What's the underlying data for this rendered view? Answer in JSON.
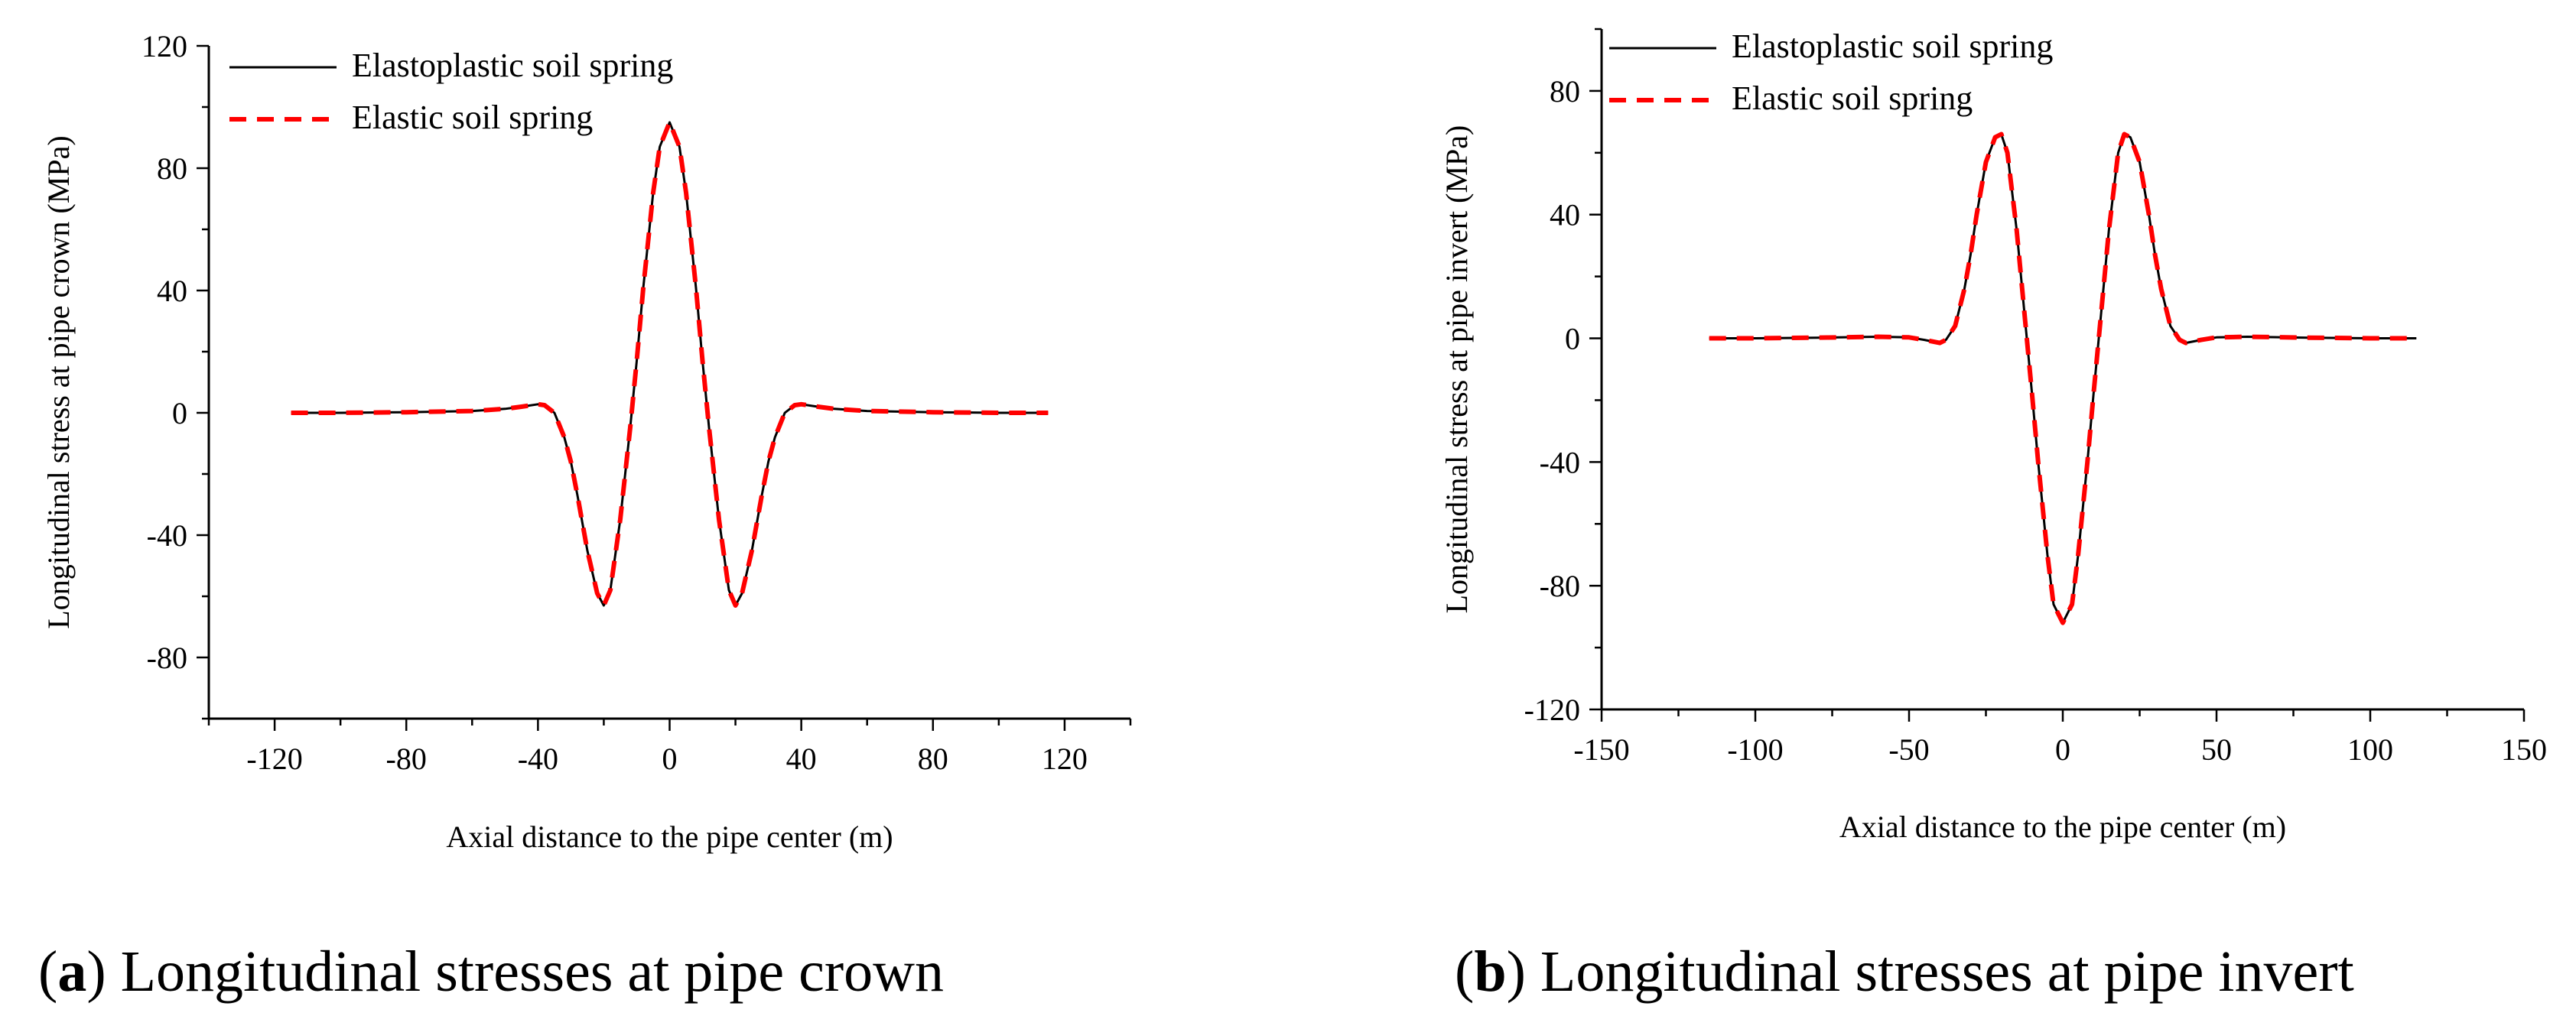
{
  "chart_data": [
    {
      "type": "line",
      "title": "",
      "xlabel": "Axial distance to the pipe center (m)",
      "ylabel": "Longitudinal stress at pipe crown (MPa)",
      "xlim": [
        -140,
        140
      ],
      "ylim": [
        -100,
        120
      ],
      "xticks": [
        -120,
        -80,
        -40,
        0,
        40,
        80,
        120
      ],
      "xtick_labels": [
        "-120",
        "-80",
        "-40",
        "0",
        "40",
        "80",
        "120"
      ],
      "yticks": [
        -80,
        -40,
        0,
        40,
        80,
        120
      ],
      "ytick_labels": [
        "-80",
        "-40",
        "0",
        "40",
        "80",
        "120"
      ],
      "legend_position": "top-left",
      "series": [
        {
          "name": "Elastoplastic soil spring",
          "color": "#000000",
          "dash": "solid",
          "x": [
            -115,
            -100,
            -80,
            -60,
            -50,
            -45,
            -40,
            -38,
            -35,
            -32,
            -30,
            -28,
            -25,
            -22,
            -20,
            -18,
            -15,
            -12,
            -10,
            -8,
            -5,
            -3,
            0,
            3,
            5,
            8,
            10,
            12,
            15,
            18,
            20,
            22,
            25,
            28,
            30,
            32,
            35,
            38,
            40,
            45,
            50,
            60,
            80,
            100,
            115
          ],
          "y": [
            0,
            0,
            0.2,
            0.6,
            1.3,
            2,
            2.8,
            2.5,
            0,
            -8,
            -16,
            -27,
            -45,
            -59,
            -63,
            -58,
            -35,
            -5,
            17,
            41,
            72,
            87,
            95,
            87,
            72,
            41,
            17,
            -5,
            -35,
            -58,
            -63,
            -59,
            -45,
            -27,
            -16,
            -8,
            0,
            2.5,
            2.8,
            2,
            1.3,
            0.6,
            0.2,
            0,
            0
          ]
        },
        {
          "name": "Elastic soil spring",
          "color": "#ff0000",
          "dash": "dashed",
          "x": [
            -115,
            -100,
            -80,
            -60,
            -50,
            -45,
            -40,
            -38,
            -35,
            -32,
            -30,
            -28,
            -25,
            -22,
            -20,
            -18,
            -15,
            -12,
            -10,
            -8,
            -5,
            -3,
            0,
            3,
            5,
            8,
            10,
            12,
            15,
            18,
            20,
            22,
            25,
            28,
            30,
            32,
            35,
            38,
            40,
            45,
            50,
            60,
            80,
            100,
            115
          ],
          "y": [
            0,
            0,
            0.2,
            0.6,
            1.3,
            2,
            2.8,
            2.5,
            0,
            -8,
            -16,
            -27,
            -45,
            -59,
            -63,
            -58,
            -35,
            -5,
            17,
            41,
            72,
            87,
            95,
            87,
            72,
            41,
            17,
            -5,
            -35,
            -58,
            -63,
            -59,
            -45,
            -27,
            -16,
            -8,
            0,
            2.5,
            2.8,
            2,
            1.3,
            0.6,
            0.2,
            0,
            0
          ]
        }
      ]
    },
    {
      "type": "line",
      "title": "",
      "xlabel": "Axial distance to the pipe center (m)",
      "ylabel": "Longitudinal stress at pipe invert (MPa)",
      "xlim": [
        -150,
        150
      ],
      "ylim": [
        -120,
        100
      ],
      "xticks": [
        -150,
        -100,
        -50,
        0,
        50,
        100,
        150
      ],
      "xtick_labels": [
        "-150",
        "-100",
        "-50",
        "0",
        "50",
        "100",
        "150"
      ],
      "yticks": [
        -120,
        -80,
        -40,
        0,
        40,
        80
      ],
      "ytick_labels": [
        "-120",
        "-80",
        "-40",
        "0",
        "40",
        "80"
      ],
      "legend_position": "top-left",
      "series": [
        {
          "name": "Elastoplastic soil spring",
          "color": "#000000",
          "dash": "solid",
          "x": [
            -115,
            -100,
            -80,
            -60,
            -50,
            -45,
            -40,
            -38,
            -35,
            -32,
            -30,
            -28,
            -25,
            -22,
            -20,
            -18,
            -15,
            -12,
            -10,
            -8,
            -5,
            -3,
            0,
            3,
            5,
            8,
            10,
            12,
            15,
            18,
            20,
            22,
            25,
            28,
            30,
            32,
            35,
            38,
            40,
            45,
            50,
            60,
            80,
            100,
            115
          ],
          "y": [
            0,
            0,
            0.2,
            0.5,
            0.3,
            -0.5,
            -1.5,
            -0.5,
            4,
            16,
            27,
            40,
            57,
            65,
            66,
            60,
            35,
            3,
            -18,
            -40,
            -70,
            -86,
            -92,
            -86,
            -70,
            -40,
            -18,
            3,
            35,
            60,
            66,
            65,
            57,
            40,
            27,
            16,
            4,
            -0.5,
            -1.5,
            -0.5,
            0.3,
            0.5,
            0.2,
            0,
            0
          ]
        },
        {
          "name": "Elastic soil spring",
          "color": "#ff0000",
          "dash": "dashed",
          "x": [
            -115,
            -100,
            -80,
            -60,
            -50,
            -45,
            -40,
            -38,
            -35,
            -32,
            -30,
            -28,
            -25,
            -22,
            -20,
            -18,
            -15,
            -12,
            -10,
            -8,
            -5,
            -3,
            0,
            3,
            5,
            8,
            10,
            12,
            15,
            18,
            20,
            22,
            25,
            28,
            30,
            32,
            35,
            38,
            40,
            45,
            50,
            60,
            80,
            100,
            115
          ],
          "y": [
            0,
            0,
            0.2,
            0.5,
            0.3,
            -0.5,
            -1.5,
            -0.5,
            4,
            16,
            27,
            40,
            57,
            65,
            66,
            60,
            35,
            3,
            -18,
            -40,
            -70,
            -86,
            -92,
            -86,
            -70,
            -40,
            -18,
            3,
            35,
            60,
            66,
            65,
            57,
            40,
            27,
            16,
            4,
            -0.5,
            -1.5,
            -0.5,
            0.3,
            0.5,
            0.2,
            0,
            0
          ]
        }
      ]
    }
  ],
  "captions": {
    "a": {
      "letter": "a",
      "text": " Longitudinal stresses at pipe crown"
    },
    "b": {
      "letter": "b",
      "text": " Longitudinal stresses at pipe invert"
    }
  }
}
